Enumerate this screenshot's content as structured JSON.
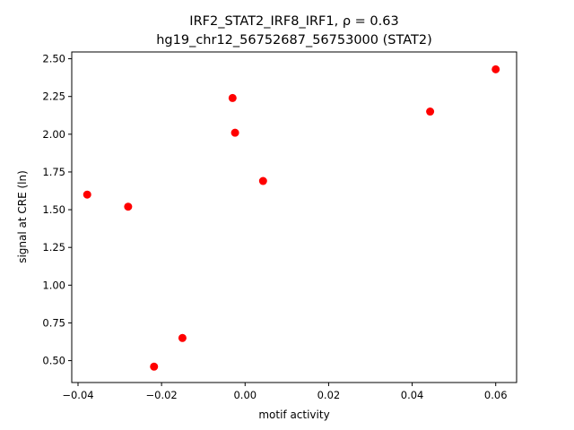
{
  "chart_data": {
    "type": "scatter",
    "title_line1": "IRF2_STAT2_IRF8_IRF1, ρ = 0.63",
    "title_line2": "hg19_chr12_56752687_56753000 (STAT2)",
    "xlabel": "motif activity",
    "ylabel": "signal at CRE (ln)",
    "xlim": [
      -0.0415,
      0.065
    ],
    "ylim": [
      0.355,
      2.545
    ],
    "x_ticks": [
      -0.04,
      -0.02,
      0.0,
      0.02,
      0.04,
      0.06
    ],
    "x_tick_labels": [
      "−0.04",
      "−0.02",
      "0.00",
      "0.02",
      "0.04",
      "0.06"
    ],
    "y_ticks": [
      0.5,
      0.75,
      1.0,
      1.25,
      1.5,
      1.75,
      2.0,
      2.25,
      2.5
    ],
    "y_tick_labels": [
      "0.50",
      "0.75",
      "1.00",
      "1.25",
      "1.50",
      "1.75",
      "2.00",
      "2.25",
      "2.50"
    ],
    "marker_color": "#ff0000",
    "grid": false,
    "points": [
      {
        "x": -0.0378,
        "y": 1.6
      },
      {
        "x": -0.028,
        "y": 1.52
      },
      {
        "x": -0.0218,
        "y": 0.46
      },
      {
        "x": -0.015,
        "y": 0.65
      },
      {
        "x": -0.003,
        "y": 2.24
      },
      {
        "x": -0.0024,
        "y": 2.01
      },
      {
        "x": 0.0043,
        "y": 1.69
      },
      {
        "x": 0.0443,
        "y": 2.15
      },
      {
        "x": 0.06,
        "y": 2.43
      }
    ]
  }
}
